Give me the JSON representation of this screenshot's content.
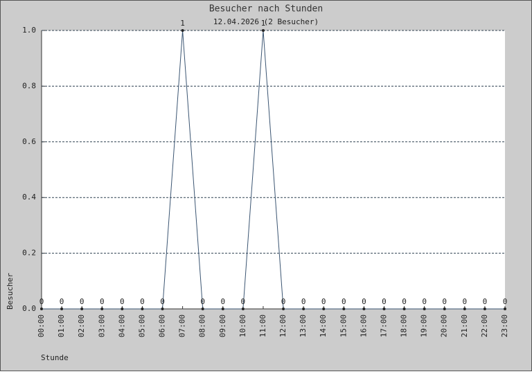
{
  "chart_data": {
    "type": "line",
    "title": "Besucher nach Stunden",
    "subtitle": "12.04.2026 (2 Besucher)",
    "x_label": "Stunde",
    "y_label": "Besucher",
    "categories": [
      "00:00",
      "01:00",
      "02:00",
      "03:00",
      "04:00",
      "05:00",
      "06:00",
      "07:00",
      "08:00",
      "09:00",
      "10:00",
      "11:00",
      "12:00",
      "13:00",
      "14:00",
      "15:00",
      "16:00",
      "17:00",
      "18:00",
      "19:00",
      "20:00",
      "21:00",
      "22:00",
      "23:00"
    ],
    "values": [
      0,
      0,
      0,
      0,
      0,
      0,
      0,
      1,
      0,
      0,
      0,
      1,
      0,
      0,
      0,
      0,
      0,
      0,
      0,
      0,
      0,
      0,
      0,
      0
    ],
    "color": "#3b5572",
    "ylim": [
      0,
      1
    ],
    "yticks": [
      {
        "value": 0,
        "label": "0.0"
      },
      0.2,
      0.4,
      0.6,
      0.8,
      {
        "value": 1,
        "label": "1.0"
      }
    ],
    "grid": true
  }
}
